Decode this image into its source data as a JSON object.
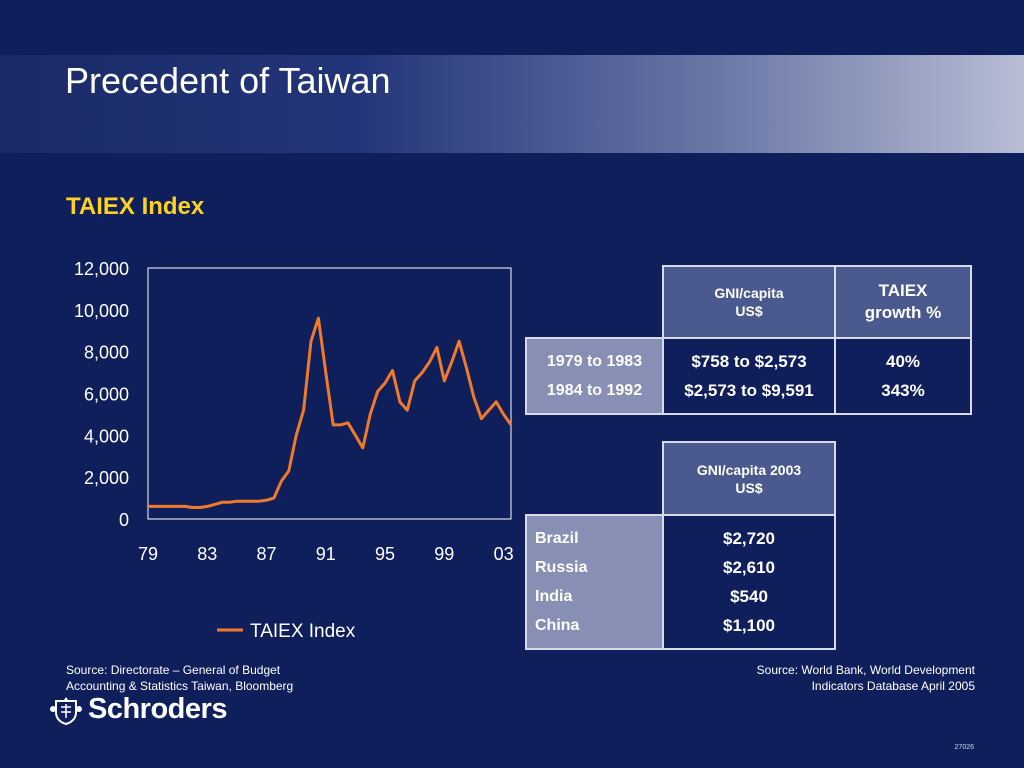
{
  "header": {
    "title": "Precedent of Taiwan",
    "subtitle": "TAIEX Index"
  },
  "chart_data": {
    "type": "line",
    "title": "",
    "xlabel": "",
    "ylabel": "",
    "ylim": [
      0,
      12000
    ],
    "y_ticks": [
      "0",
      "2,000",
      "4,000",
      "6,000",
      "8,000",
      "10,000",
      "12,000"
    ],
    "x_ticks": [
      "79",
      "83",
      "87",
      "91",
      "95",
      "99",
      "03"
    ],
    "legend": "bottom",
    "series": [
      {
        "name": "TAIEX Index",
        "color": "#f07a2a",
        "x": [
          "Jan-79",
          "Jul-79",
          "Jan-80",
          "Jul-80",
          "Jan-81",
          "Jul-81",
          "Jan-82",
          "Jul-82",
          "Jan-83",
          "Jul-83",
          "Jan-84",
          "Jul-84",
          "Jan-85",
          "Jul-85",
          "Jan-86",
          "Jul-86",
          "Jan-87",
          "Jul-87",
          "Jan-88",
          "Jul-88",
          "Jan-89",
          "Jul-89",
          "Jan-90",
          "Jul-90",
          "Jan-91",
          "Jul-91",
          "Jan-92",
          "Jul-92",
          "Jan-93",
          "Jul-93",
          "Jan-94",
          "Jul-94",
          "Jan-95",
          "Jul-95",
          "Jan-96",
          "Jul-96",
          "Jan-97",
          "Jul-97",
          "Jan-98",
          "Jul-98",
          "Jan-99",
          "Jul-99",
          "Jan-00",
          "Jul-00",
          "Jan-01",
          "Jul-01",
          "Jan-02",
          "Jul-02",
          "Jan-03",
          "Jul-03"
        ],
        "values": [
          600,
          600,
          600,
          600,
          600,
          600,
          550,
          550,
          600,
          700,
          800,
          800,
          850,
          850,
          850,
          850,
          900,
          1000,
          1800,
          2300,
          4000,
          5200,
          8500,
          9600,
          7000,
          4500,
          4500,
          4600,
          4000,
          3400,
          5000,
          6100,
          6500,
          7100,
          5600,
          5200,
          6600,
          7000,
          7500,
          8200,
          6600,
          7500,
          8500,
          7200,
          5800,
          4800,
          5200,
          5600,
          5000,
          4500
        ]
      }
    ]
  },
  "gni_table": {
    "header_gni": [
      "GNI/capita",
      "US$"
    ],
    "header_taiex": [
      "TAIEX",
      "growth %"
    ],
    "rows": [
      {
        "period": "1979 to 1983",
        "gni": "$758 to $2,573",
        "growth": "40%"
      },
      {
        "period": "1984 to 1992",
        "gni": "$2,573 to $9,591",
        "growth": "343%"
      }
    ]
  },
  "country_table": {
    "header": [
      "GNI/capita 2003",
      "US$"
    ],
    "rows": [
      {
        "country": "Brazil",
        "value": "$2,720"
      },
      {
        "country": "Russia",
        "value": "$2,610"
      },
      {
        "country": "India",
        "value": "$540"
      },
      {
        "country": "China",
        "value": "$1,100"
      }
    ]
  },
  "footer": {
    "source_left": [
      "Source: Directorate – General of Budget",
      "Accounting & Statistics Taiwan, Bloomberg"
    ],
    "source_right": [
      "Source:  World Bank, World Development",
      "Indicators Database April 2005"
    ],
    "logo_text": "Schroders",
    "code": "27026"
  },
  "colors": {
    "background": "#0f1f5c",
    "accent_yellow": "#ffd21f",
    "line_orange": "#f07a2a"
  }
}
